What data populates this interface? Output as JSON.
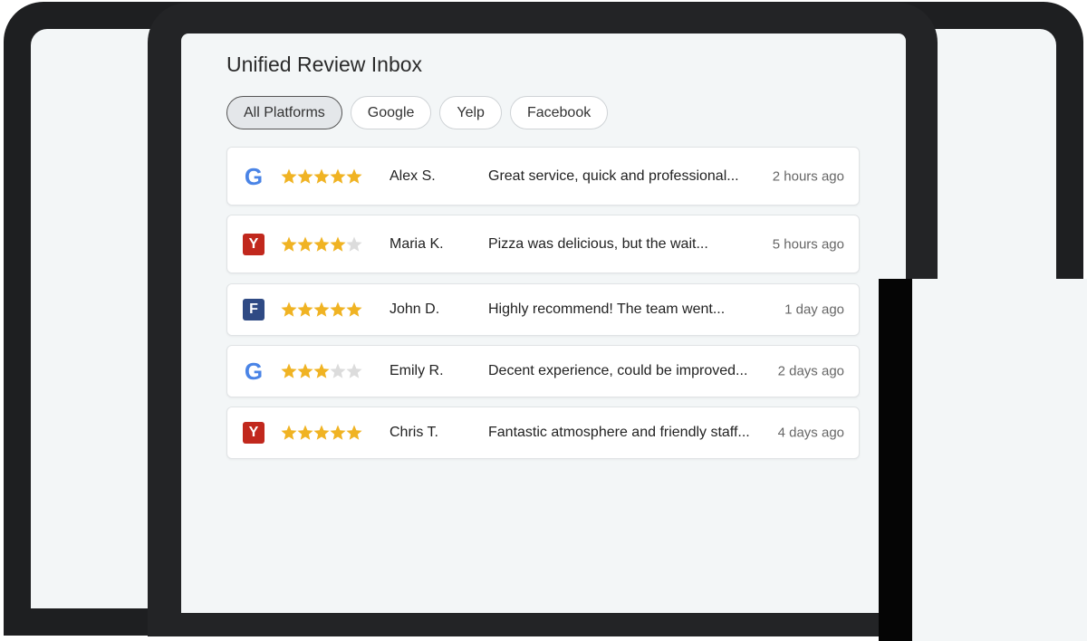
{
  "header": {
    "title": "Unified Review Inbox"
  },
  "tabs": [
    "All Platforms",
    "Google",
    "Yelp",
    "Facebook"
  ],
  "selected_tab": 0,
  "reviews": [
    {
      "platform": "google",
      "icon": "G",
      "rating": 5,
      "name": "Alex S.",
      "text": "Great service, quick and professional...",
      "time": "2 hours ago"
    },
    {
      "platform": "yelp",
      "icon": "Y",
      "rating": 4,
      "name": "Maria K.",
      "text": "Pizza was delicious, but the wait...",
      "time": "5 hours ago"
    },
    {
      "platform": "facebook",
      "icon": "F",
      "rating": 5,
      "name": "John D.",
      "text": "Highly recommend! The team went...",
      "time": "1 day ago"
    },
    {
      "platform": "google",
      "icon": "G",
      "rating": 3,
      "name": "Emily R.",
      "text": "Decent experience, could be improved...",
      "time": "2 days ago"
    },
    {
      "platform": "yelp",
      "icon": "Y",
      "rating": 5,
      "name": "Chris T.",
      "text": "Fantastic atmosphere and friendly staff...",
      "time": "4 days ago"
    }
  ]
}
